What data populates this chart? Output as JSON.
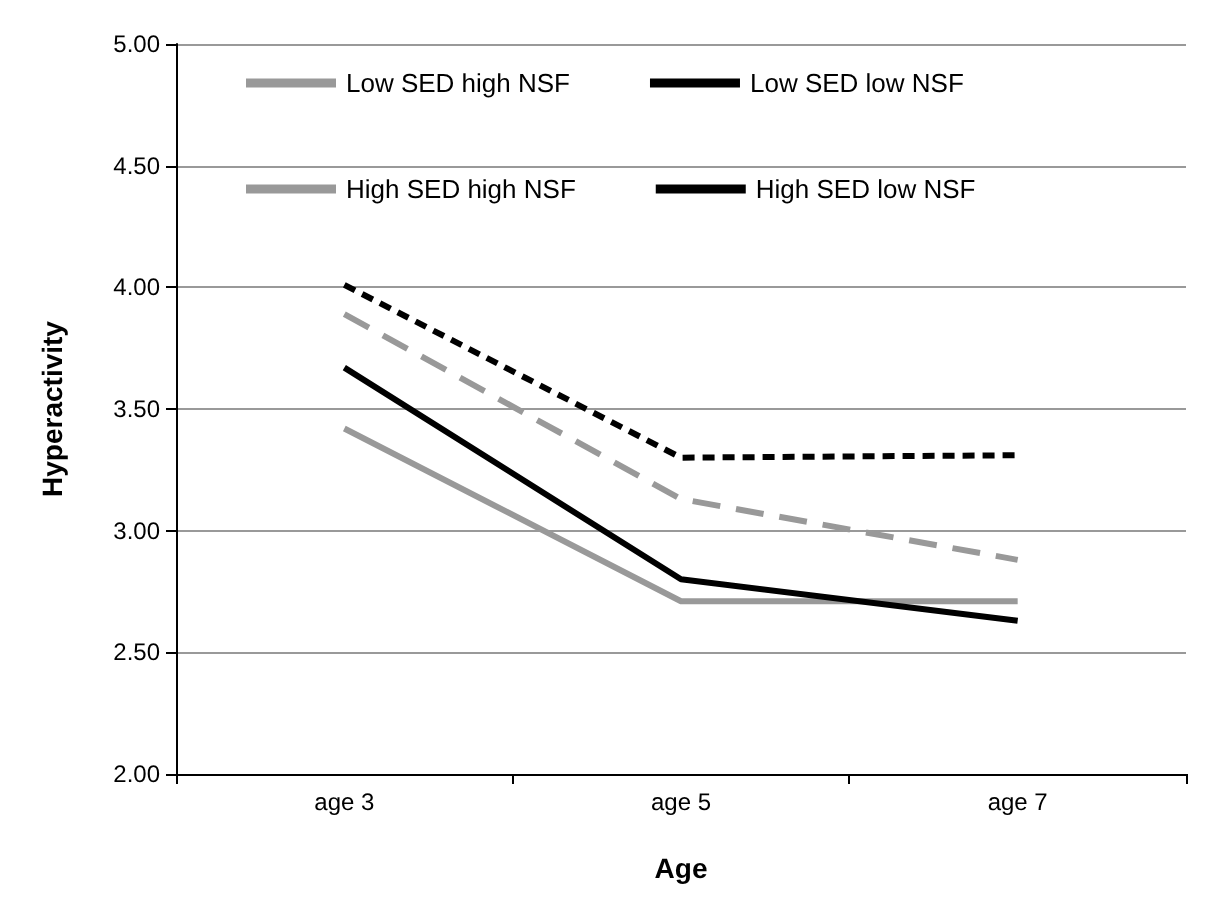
{
  "chart_data": {
    "type": "line",
    "xlabel": "Age",
    "ylabel": "Hyperactivity",
    "categories": [
      "age 3",
      "age 5",
      "age 7"
    ],
    "series": [
      {
        "name": "Low SED high NSF",
        "color": "#999999",
        "line_style": "solid",
        "values": [
          3.42,
          2.71,
          2.71
        ]
      },
      {
        "name": "Low SED low NSF",
        "color": "#000000",
        "line_style": "solid",
        "values": [
          3.67,
          2.8,
          2.63
        ]
      },
      {
        "name": "High SED high NSF",
        "color": "#999999",
        "line_style": "dashed",
        "values": [
          3.89,
          3.13,
          2.88
        ]
      },
      {
        "name": "High SED low NSF",
        "color": "#000000",
        "line_style": "dotted",
        "values": [
          4.01,
          3.3,
          3.31
        ]
      }
    ],
    "ylim": [
      2,
      5
    ],
    "yticks": [
      {
        "value": 2,
        "label": "2.00"
      },
      {
        "value": 2.5,
        "label": "2.50"
      },
      {
        "value": 3,
        "label": "3.00"
      },
      {
        "value": 3.5,
        "label": "3.50"
      },
      {
        "value": 4,
        "label": "4.00"
      },
      {
        "value": 4.5,
        "label": "4.50"
      },
      {
        "value": 5,
        "label": "5.00"
      }
    ],
    "grid": "y",
    "legend": "top",
    "marker": "none"
  }
}
